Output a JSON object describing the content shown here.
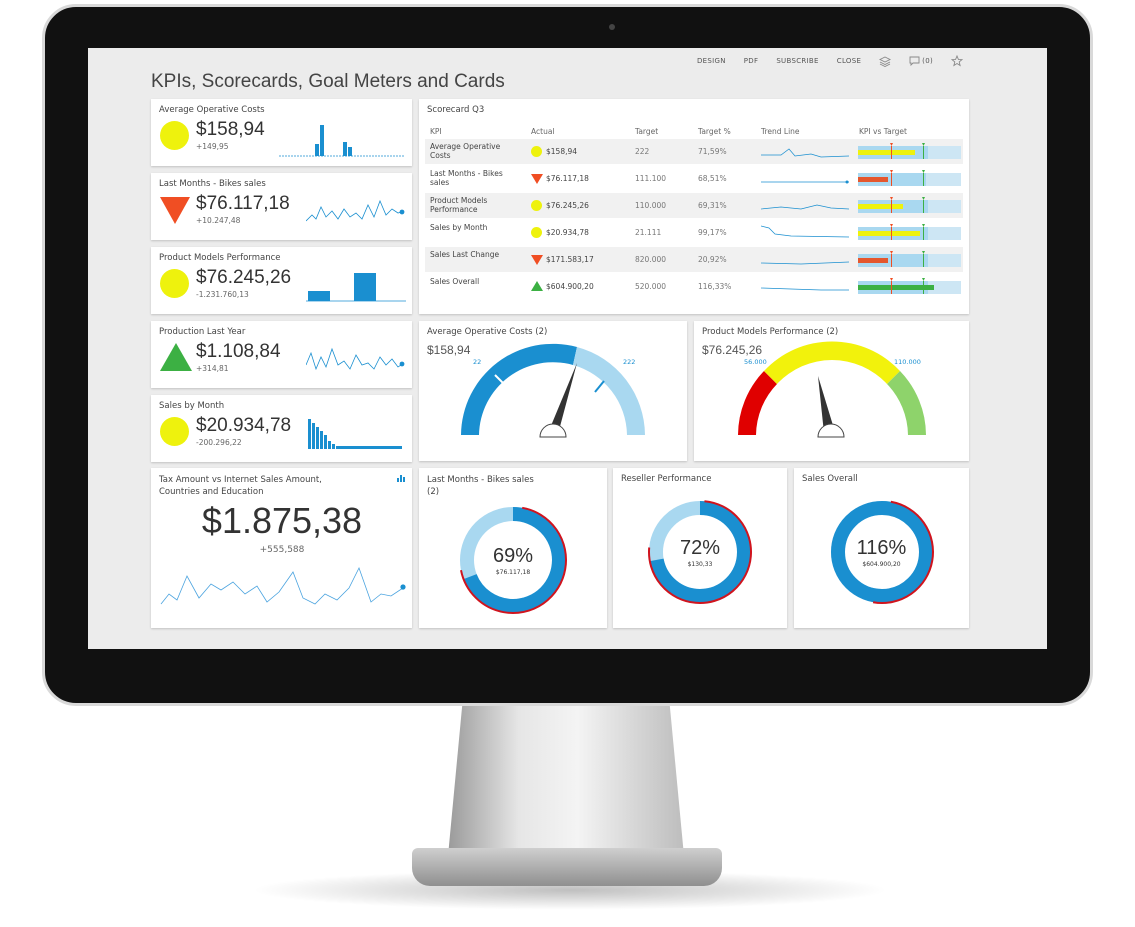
{
  "toolbar": {
    "design": "DESIGN",
    "pdf": "PDF",
    "subscribe": "SUBSCRIBE",
    "close": "CLOSE",
    "comments": "(0)"
  },
  "page_title": "KPIs, Scorecards, Goal Meters and Cards",
  "kpi_cards": [
    {
      "title": "Average Operative Costs",
      "value": "$158,94",
      "delta": "+149,95",
      "indicator": "circle-yellow"
    },
    {
      "title": "Last Months - Bikes sales",
      "value": "$76.117,18",
      "delta": "+10.247,48",
      "indicator": "triangle-down-orange"
    },
    {
      "title": "Product Models Performance",
      "value": "$76.245,26",
      "delta": "-1.231.760,13",
      "indicator": "circle-yellow"
    },
    {
      "title": "Production Last Year",
      "value": "$1.108,84",
      "delta": "+314,81",
      "indicator": "triangle-up-green"
    },
    {
      "title": "Sales by Month",
      "value": "$20.934,78",
      "delta": "-200.296,22",
      "indicator": "circle-yellow"
    }
  ],
  "scorecard": {
    "title": "Scorecard Q3",
    "headers": {
      "kpi": "KPI",
      "actual": "Actual",
      "target": "Target",
      "target_pct": "Target %",
      "trend": "Trend Line",
      "vs": "KPI vs Target"
    },
    "rows": [
      {
        "kpi": "Average Operative Costs",
        "actual": "$158,94",
        "target": "222",
        "pct": "71,59%",
        "indicator": "circle-yellow"
      },
      {
        "kpi": "Last Months - Bikes sales",
        "actual": "$76.117,18",
        "target": "111.100",
        "pct": "68,51%",
        "indicator": "triangle-down-orange"
      },
      {
        "kpi": "Product Models Performance",
        "actual": "$76.245,26",
        "target": "110.000",
        "pct": "69,31%",
        "indicator": "circle-yellow"
      },
      {
        "kpi": "Sales by Month",
        "actual": "$20.934,78",
        "target": "21.111",
        "pct": "99,17%",
        "indicator": "circle-yellow"
      },
      {
        "kpi": "Sales Last Change",
        "actual": "$171.583,17",
        "target": "820.000",
        "pct": "20,92%",
        "indicator": "triangle-down-orange"
      },
      {
        "kpi": "Sales Overall",
        "actual": "$604.900,20",
        "target": "520.000",
        "pct": "116,33%",
        "indicator": "triangle-up-green"
      }
    ]
  },
  "big_card": {
    "title": "Tax Amount vs Internet Sales Amount, Countries and Education",
    "value": "$1.875,38",
    "delta": "+555,588"
  },
  "gauges": [
    {
      "title": "Average Operative Costs (2)",
      "value": "$158,94",
      "min_label": "22",
      "max_label": "222"
    },
    {
      "title": "Product Models Performance (2)",
      "value": "$76.245,26",
      "min_label": "56.000",
      "max_label": "110.000"
    }
  ],
  "donuts": [
    {
      "title": "Last Months - Bikes sales (2)",
      "pct": "69%",
      "sub": "$76.117,18",
      "fraction": 0.69
    },
    {
      "title": "Reseller Performance",
      "pct": "72%",
      "sub": "$130,33",
      "fraction": 0.72
    },
    {
      "title": "Sales Overall",
      "pct": "116%",
      "sub": "$604.900,20",
      "fraction": 1.16
    }
  ],
  "colors": {
    "yellow": "#eef20d",
    "orange": "#f04e23",
    "green": "#3cb043",
    "blue": "#1a8fd0",
    "light_blue": "#a9d8f0"
  }
}
